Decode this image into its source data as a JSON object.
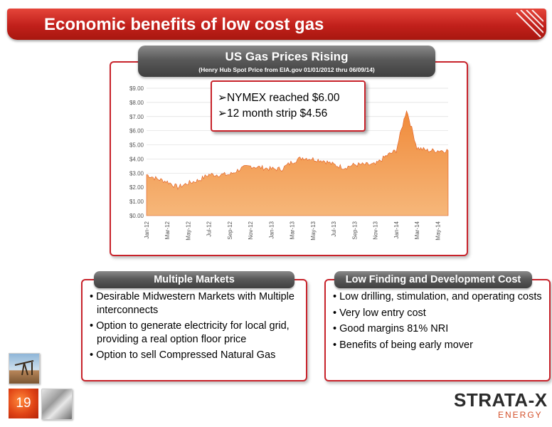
{
  "header": {
    "title": "Economic benefits of low cost gas"
  },
  "chart_panel": {
    "title": "US Gas Prices Rising",
    "subtitle": "(Henry Hub Spot Price from EIA.gov 01/01/2012 thru 06/09/14)",
    "callout": [
      "➢NYMEX reached $6.00",
      "➢12 month strip $4.56"
    ]
  },
  "chart_data": {
    "type": "area",
    "title": "",
    "xlabel": "",
    "ylabel": "",
    "ylim": [
      0,
      9
    ],
    "y_ticks": [
      "$0.00",
      "$1.00",
      "$2.00",
      "$3.00",
      "$4.00",
      "$5.00",
      "$6.00",
      "$7.00",
      "$8.00",
      "$9.00"
    ],
    "x_ticks": [
      "Jan-12",
      "Mar-12",
      "May-12",
      "Jul-12",
      "Sep-12",
      "Nov-12",
      "Jan-13",
      "Mar-13",
      "May-13",
      "Jul-13",
      "Sep-13",
      "Nov-13",
      "Jan-14",
      "Mar-14",
      "May-14"
    ],
    "x": [
      "Jan-12",
      "Feb-12",
      "Mar-12",
      "Apr-12",
      "May-12",
      "Jun-12",
      "Jul-12",
      "Aug-12",
      "Sep-12",
      "Oct-12",
      "Nov-12",
      "Dec-12",
      "Jan-13",
      "Feb-13",
      "Mar-13",
      "Apr-13",
      "May-13",
      "Jun-13",
      "Jul-13",
      "Aug-13",
      "Sep-13",
      "Oct-13",
      "Nov-13",
      "Dec-13",
      "Jan-14",
      "Feb-14",
      "Mar-14",
      "Apr-14",
      "May-14",
      "Jun-14"
    ],
    "series": [
      {
        "values": [
          2.9,
          2.6,
          2.4,
          2.0,
          2.3,
          2.5,
          2.9,
          2.9,
          2.9,
          3.3,
          3.5,
          3.4,
          3.3,
          3.3,
          3.8,
          4.1,
          4.0,
          3.9,
          3.6,
          3.4,
          3.6,
          3.6,
          3.6,
          4.2,
          4.6,
          7.5,
          4.8,
          4.6,
          4.6,
          4.6
        ]
      }
    ],
    "colors": {
      "area_top": "#f4a65c",
      "area_bottom": "#e8481c",
      "grid": "#dddddd"
    }
  },
  "markets": {
    "title": "Multiple Markets",
    "items": [
      "Desirable Midwestern Markets with Multiple interconnects",
      "Option to generate electricity for local grid, providing a real option floor price",
      "Option to sell Compressed Natural Gas"
    ]
  },
  "costs": {
    "title": "Low Finding and Development Cost",
    "items": [
      "Low drilling, stimulation, and operating costs",
      "Very low entry cost",
      "Good margins 81% NRI",
      "Benefits of being early mover"
    ]
  },
  "footer": {
    "page_number": "19",
    "logo_main": "STRATA-X",
    "logo_sub": "ENERGY"
  }
}
